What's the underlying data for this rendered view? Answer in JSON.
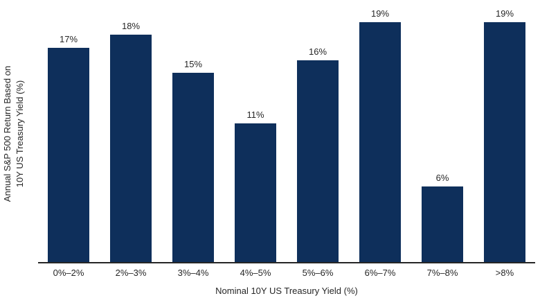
{
  "chart_data": {
    "type": "bar",
    "title": "",
    "categories": [
      "0%–2%",
      "2%–3%",
      "3%–4%",
      "4%–5%",
      "5%–6%",
      "6%–7%",
      "7%–8%",
      ">8%"
    ],
    "values": [
      17,
      18,
      15,
      11,
      16,
      19,
      6,
      19
    ],
    "value_labels": [
      "17%",
      "18%",
      "15%",
      "11%",
      "16%",
      "19%",
      "6%",
      "19%"
    ],
    "xlabel": "Nominal 10Y US Treasury Yield (%)",
    "ylabel": "Annual S&P 500 Return Based on 10Y US Treasury Yield (%)",
    "ylabel_lines": [
      "Annual S&P 500 Return Based on",
      "10Y US Treasury Yield (%)"
    ],
    "ylim": [
      0,
      20
    ],
    "grid": false,
    "legend": false,
    "bar_color": "#0e2f5b",
    "axis_line_color": "#262626",
    "text_color": "#262626"
  }
}
